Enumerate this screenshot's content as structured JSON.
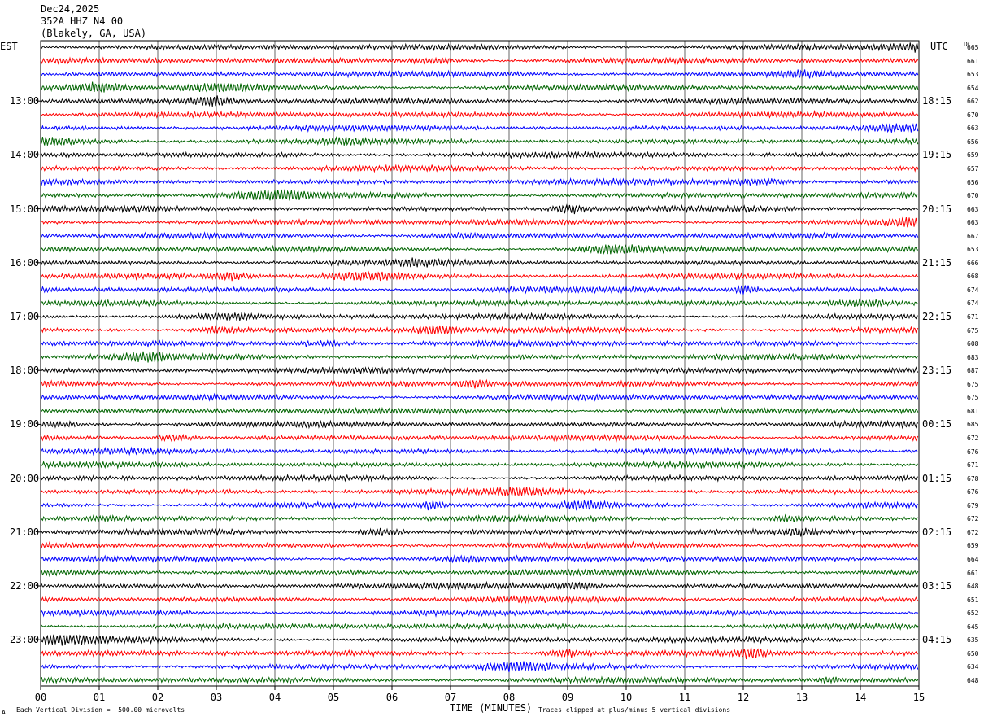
{
  "header": {
    "date": "Dec24,2025",
    "station": "352A HHZ N4 00",
    "location": "(Blakely, GA, USA)"
  },
  "left_zone": "EST",
  "right_zone": "UTC",
  "dc_header": "DC",
  "footer": {
    "scale_note": "Each Vertical Division =  500.00 microvolts",
    "clip_note": "Traces clipped at plus/minus 5 vertical divisions",
    "corner_mark": "A"
  },
  "chart_data": {
    "type": "line",
    "xlabel": "TIME (MINUTES)",
    "xlim": [
      0,
      15
    ],
    "x_ticks": [
      "00",
      "01",
      "02",
      "03",
      "04",
      "05",
      "06",
      "07",
      "08",
      "09",
      "10",
      "11",
      "12",
      "13",
      "14",
      "15"
    ],
    "trace_colors": [
      "#000000",
      "#ff0000",
      "#0000ff",
      "#006400"
    ],
    "left_hour_labels": [
      "13:00",
      "14:00",
      "15:00",
      "16:00",
      "17:00",
      "18:00",
      "19:00",
      "20:00",
      "21:00",
      "22:00",
      "23:00"
    ],
    "right_hour_labels": [
      "18:15",
      "19:15",
      "20:15",
      "21:15",
      "22:15",
      "23:15",
      "00:15",
      "01:15",
      "02:15",
      "03:15",
      "04:15"
    ],
    "dc_offsets": [
      "665",
      "661",
      "653",
      "654",
      "662",
      "670",
      "663",
      "656",
      "659",
      "657",
      "656",
      "670",
      "663",
      "663",
      "667",
      "653",
      "666",
      "668",
      "674",
      "674",
      "671",
      "675",
      "608",
      "683",
      "687",
      "675",
      "675",
      "681",
      "685",
      "672",
      "676",
      "671",
      "678",
      "676",
      "679",
      "672",
      "672",
      "659",
      "664",
      "661",
      "648",
      "651",
      "652",
      "645",
      "635",
      "650",
      "634",
      "648"
    ]
  }
}
